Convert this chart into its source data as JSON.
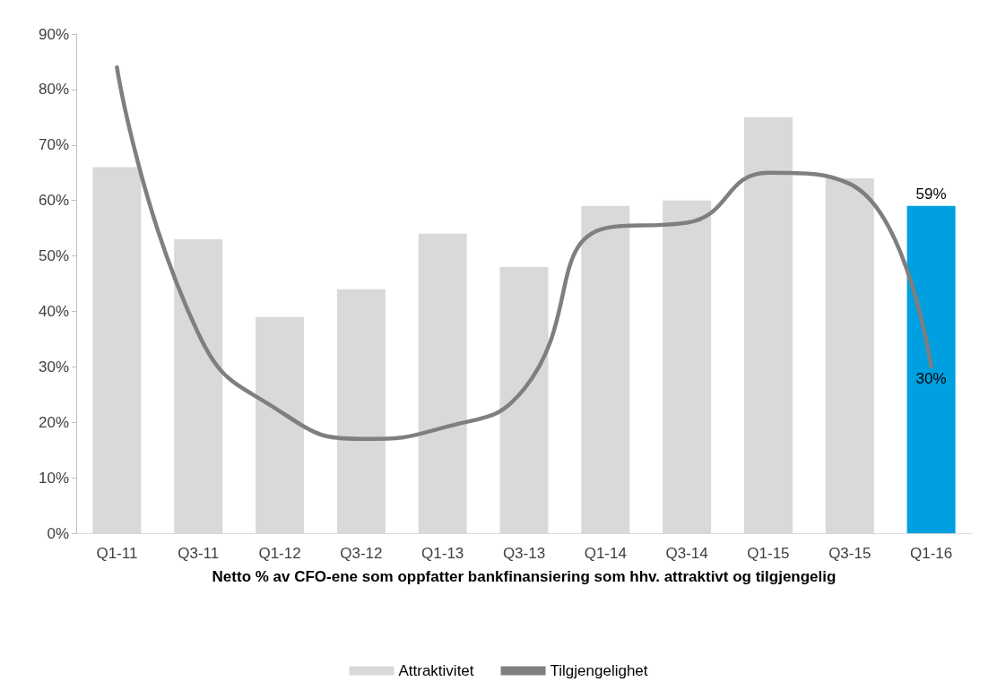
{
  "chart_data": {
    "type": "bar",
    "xlabel": "Netto % av CFO-ene som oppfatter bankfinansiering som hhv. attraktivt og tilgjengelig",
    "categories": [
      "Q1-11",
      "Q3-11",
      "Q1-12",
      "Q3-12",
      "Q1-13",
      "Q3-13",
      "Q1-14",
      "Q3-14",
      "Q1-15",
      "Q3-15",
      "Q1-16"
    ],
    "series": [
      {
        "name": "Attraktivitet",
        "color": "#d9d9d9",
        "colors": [
          "#d9d9d9",
          "#d9d9d9",
          "#d9d9d9",
          "#d9d9d9",
          "#d9d9d9",
          "#d9d9d9",
          "#d9d9d9",
          "#d9d9d9",
          "#d9d9d9",
          "#d9d9d9",
          "#009fdf"
        ],
        "values": [
          66,
          53,
          39,
          44,
          54,
          48,
          59,
          60,
          75,
          64,
          59
        ],
        "value_labels": [
          null,
          null,
          null,
          null,
          null,
          null,
          null,
          null,
          null,
          null,
          "59%"
        ]
      },
      {
        "name": "Tilgjengelighet",
        "type": "line",
        "color": "#7f7f7f",
        "values": [
          84,
          36,
          22,
          17,
          19,
          26,
          55,
          56,
          65,
          63,
          30
        ],
        "value_labels": [
          null,
          null,
          null,
          null,
          null,
          null,
          null,
          null,
          null,
          null,
          "30%"
        ]
      }
    ],
    "ylim": [
      0,
      90
    ],
    "yticks": [
      {
        "value": 0,
        "label": "0%"
      },
      {
        "value": 10,
        "label": "10%"
      },
      {
        "value": 20,
        "label": "20%"
      },
      {
        "value": 30,
        "label": "30%"
      },
      {
        "value": 40,
        "label": "40%"
      },
      {
        "value": 50,
        "label": "50%"
      },
      {
        "value": 60,
        "label": "60%"
      },
      {
        "value": 70,
        "label": "70%"
      },
      {
        "value": 80,
        "label": "80%"
      },
      {
        "value": 90,
        "label": "90%"
      }
    ],
    "grid": false,
    "legend": "bottom",
    "marker": "none",
    "line_style": "solid"
  }
}
